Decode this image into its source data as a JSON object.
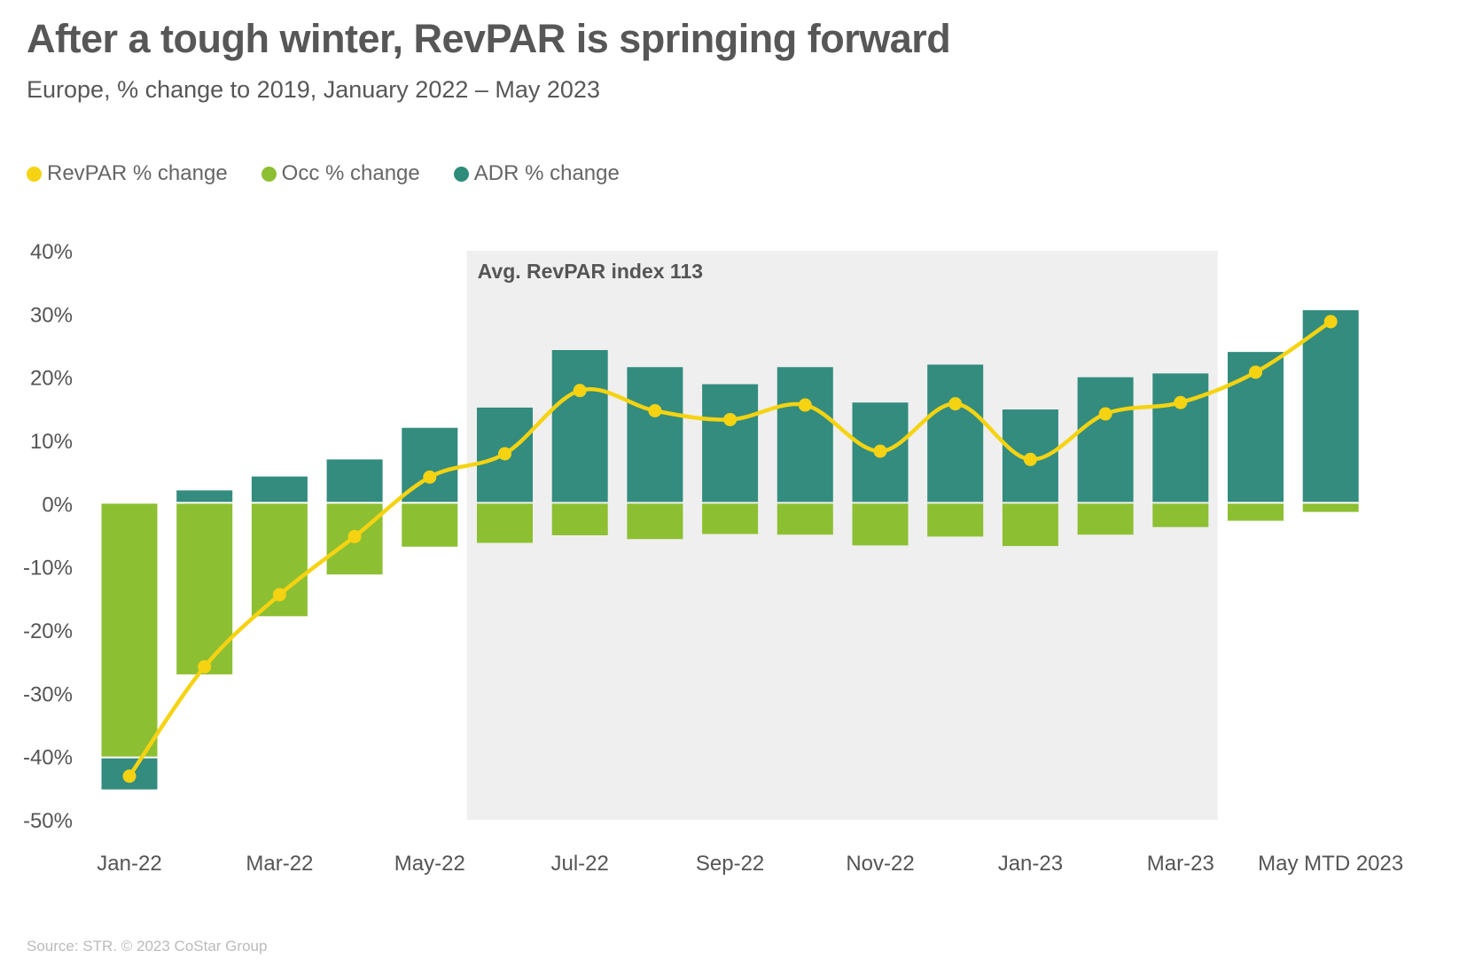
{
  "title": "After a tough winter, RevPAR is springing forward",
  "subtitle": "Europe, % change to 2019, January 2022 – May 2023",
  "source": "Source: STR. © 2023 CoStar Group",
  "legend": [
    {
      "label": "RevPAR % change",
      "color": "#F5D312"
    },
    {
      "label": "Occ % change",
      "color": "#8DBF32"
    },
    {
      "label": "ADR % change",
      "color": "#2E8C7A"
    }
  ],
  "colors": {
    "revpar": "#F5D312",
    "occ": "#8DBF32",
    "adr": "#338C7E",
    "shade": "#EFEFEF"
  },
  "chart_data": {
    "type": "bar",
    "stacked": true,
    "categories": [
      "Jan-22",
      "Feb-22",
      "Mar-22",
      "Apr-22",
      "May-22",
      "Jun-22",
      "Jul-22",
      "Aug-22",
      "Sep-22",
      "Oct-22",
      "Nov-22",
      "Dec-22",
      "Jan-23",
      "Feb-23",
      "Mar-23",
      "Apr-23",
      "May MTD 2023"
    ],
    "x_tick_labels": [
      "Jan-22",
      "",
      "Mar-22",
      "",
      "May-22",
      "",
      "Jul-22",
      "",
      "Sep-22",
      "",
      "Nov-22",
      "",
      "Jan-23",
      "",
      "Mar-23",
      "",
      "May MTD 2023"
    ],
    "series": [
      {
        "name": "Occ % change",
        "kind": "bar",
        "values": [
          -40,
          -27,
          -17.8,
          -11.2,
          -6.8,
          -6.2,
          -5.0,
          -5.6,
          -4.8,
          -4.9,
          -6.6,
          -5.2,
          -6.7,
          -4.9,
          -3.7,
          -2.7,
          -1.3
        ]
      },
      {
        "name": "ADR % change",
        "kind": "bar",
        "values": [
          -5.2,
          2.1,
          4.3,
          7.0,
          12.0,
          15.2,
          24.3,
          21.6,
          18.9,
          21.6,
          16.0,
          22.0,
          14.9,
          20.0,
          20.6,
          24.0,
          30.6
        ]
      },
      {
        "name": "RevPAR % change",
        "kind": "line",
        "values": [
          -43.1,
          -25.8,
          -14.4,
          -5.2,
          4.2,
          7.9,
          17.9,
          14.7,
          13.3,
          15.6,
          8.3,
          15.8,
          7.0,
          14.2,
          16.0,
          20.8,
          28.8
        ]
      }
    ],
    "annotation": {
      "label": "Avg. RevPAR index 113",
      "from": "Jun-22",
      "to": "Mar-23"
    },
    "ylim": [
      -50,
      40
    ],
    "yticks": [
      40,
      30,
      20,
      10,
      0,
      -10,
      -20,
      -30,
      -40,
      -50
    ],
    "ytick_labels": [
      "40%",
      "30%",
      "20%",
      "10%",
      "0%",
      "-10%",
      "-20%",
      "-30%",
      "-40%",
      "-50%"
    ],
    "grid": false,
    "legend_position": "top-left"
  }
}
